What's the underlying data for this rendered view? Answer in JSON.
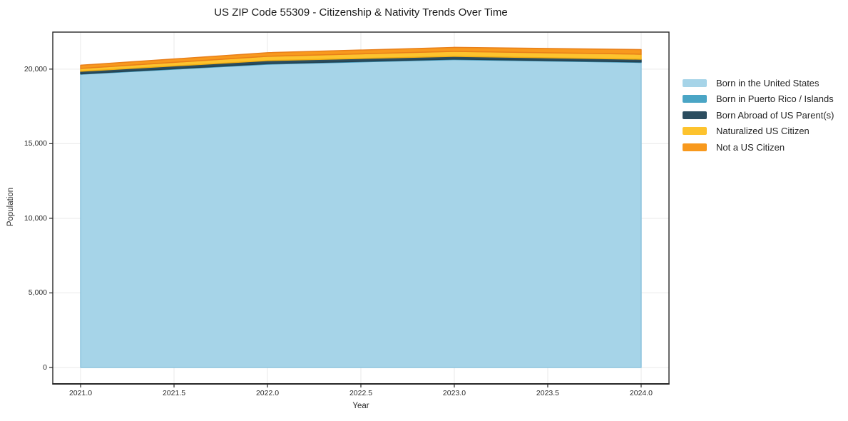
{
  "chart": {
    "title": "US ZIP Code 55309 - Citizenship & Nativity Trends Over Time",
    "xlabel": "Year",
    "ylabel": "Population"
  },
  "chart_data": {
    "type": "area",
    "stacked": true,
    "title": "US ZIP Code 55309 - Citizenship & Nativity Trends Over Time",
    "xlabel": "Year",
    "ylabel": "Population",
    "x": [
      2021,
      2022,
      2023,
      2024
    ],
    "series": [
      {
        "name": "Born in the United States",
        "color": "#a6d4e8",
        "edge": "#8cc3dd",
        "values": [
          19660,
          20330,
          20640,
          20450
        ]
      },
      {
        "name": "Born in Puerto Rico / Islands",
        "color": "#4aa5c5",
        "edge": "#3d93b5",
        "values": [
          25,
          40,
          35,
          35
        ]
      },
      {
        "name": "Born Abroad of US Parent(s)",
        "color": "#2b4d5f",
        "edge": "#24414f",
        "values": [
          170,
          200,
          180,
          180
        ]
      },
      {
        "name": "Naturalized US Citizen",
        "color": "#fdc32e",
        "edge": "#f2ae12",
        "values": [
          190,
          290,
          335,
          335
        ]
      },
      {
        "name": "Not a US Citizen",
        "color": "#f8991d",
        "edge": "#e87f1a",
        "values": [
          215,
          240,
          265,
          310
        ]
      }
    ],
    "x_ticks": [
      "2021.0",
      "2021.5",
      "2022.0",
      "2022.5",
      "2023.0",
      "2023.5",
      "2024.0"
    ],
    "x_tick_values": [
      2021,
      2021.5,
      2022,
      2022.5,
      2023,
      2023.5,
      2024
    ],
    "y_ticks": [
      "0",
      "5,000",
      "10,000",
      "15,000",
      "20,000"
    ],
    "y_tick_values": [
      0,
      5000,
      10000,
      15000,
      20000
    ],
    "xlim": [
      2020.851,
      2024.149
    ],
    "ylim": [
      -1098,
      22480
    ],
    "grid": true,
    "grid_color": "#e9e9e9",
    "frame_color": "#262626",
    "legend_position": "right-outside"
  }
}
